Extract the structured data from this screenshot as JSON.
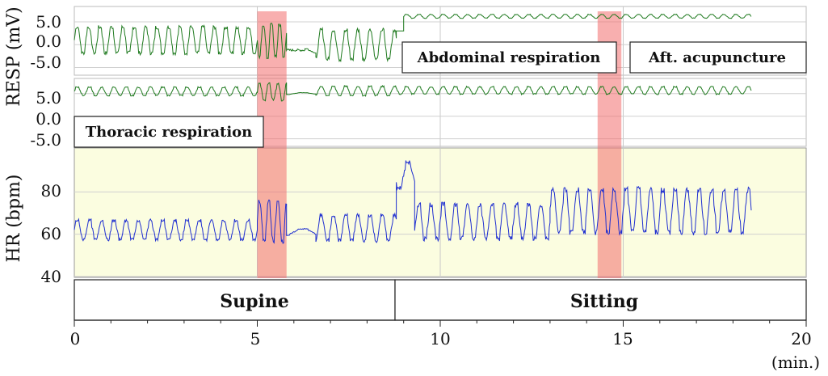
{
  "chart_data": [
    {
      "type": "line",
      "panel": "abdominal",
      "ylabel": "RESP (mV)",
      "yticks": [
        "5.0",
        "0.0",
        "-5.0"
      ],
      "ytick_values": [
        5,
        0,
        -5
      ],
      "ylim": [
        -6.5,
        8
      ],
      "xlim": [
        0,
        20
      ],
      "annotation": "Abdominal respiration",
      "annotation2": "Aft. acupuncture",
      "series": [
        {
          "color": "#1f7a1f",
          "segments": [
            {
              "from": 0.0,
              "to": 5.0,
              "base": 1.0,
              "amp": 2.8,
              "freq": 3.2
            },
            {
              "from": 5.0,
              "to": 5.8,
              "base": 0.8,
              "amp": 3.6,
              "freq": 4.5
            },
            {
              "from": 5.8,
              "to": 6.3,
              "base": -1.2,
              "amp": 0.5,
              "freq": 0.0
            },
            {
              "from": 6.3,
              "to": 6.6,
              "base": -1.5,
              "amp": 0.6,
              "freq": 1.0
            },
            {
              "from": 6.6,
              "to": 8.8,
              "base": 0.0,
              "amp": 3.2,
              "freq": 3.0
            },
            {
              "from": 8.8,
              "to": 9.0,
              "base": 3.0,
              "amp": 0.0,
              "freq": 0.0
            },
            {
              "from": 9.0,
              "to": 18.5,
              "base": 6.2,
              "amp": 0.4,
              "freq": 3.0
            }
          ]
        }
      ]
    },
    {
      "type": "line",
      "panel": "thoracic",
      "yticks": [
        "5.0",
        "0.0",
        "-5.0"
      ],
      "ytick_values": [
        5,
        0,
        -5
      ],
      "ylim": [
        -6.5,
        8
      ],
      "xlim": [
        0,
        20
      ],
      "annotation": "Thoracic respiration",
      "series": [
        {
          "color": "#1f7a1f",
          "segments": [
            {
              "from": 0.0,
              "to": 5.0,
              "base": 5.5,
              "amp": 0.9,
              "freq": 3.0
            },
            {
              "from": 5.0,
              "to": 5.8,
              "base": 5.4,
              "amp": 1.8,
              "freq": 4.0
            },
            {
              "from": 5.8,
              "to": 6.6,
              "base": 5.0,
              "amp": 0.2,
              "freq": 1.0
            },
            {
              "from": 6.6,
              "to": 8.8,
              "base": 5.6,
              "amp": 1.0,
              "freq": 3.0
            },
            {
              "from": 8.8,
              "to": 18.5,
              "base": 5.7,
              "amp": 0.8,
              "freq": 3.0
            }
          ]
        }
      ]
    },
    {
      "type": "line",
      "panel": "hr",
      "ylabel": "HR (bpm)",
      "yticks": [
        "80",
        "60",
        "40"
      ],
      "ytick_values": [
        80,
        60,
        40
      ],
      "ylim": [
        40,
        100
      ],
      "xlim": [
        0,
        20
      ],
      "xticks": [
        "0",
        "5",
        "10",
        "15",
        "20"
      ],
      "xtick_values": [
        0,
        5,
        10,
        15,
        20
      ],
      "xunit": "(min.)",
      "series": [
        {
          "color": "#1f2fd0",
          "segments": [
            {
              "from": 0.0,
              "to": 5.0,
              "base": 62,
              "amp": 4.5,
              "freq": 3.0
            },
            {
              "from": 5.0,
              "to": 5.8,
              "base": 66,
              "amp": 9.0,
              "freq": 4.0
            },
            {
              "from": 5.8,
              "to": 6.6,
              "base": 61,
              "amp": 1.5,
              "freq": 1.0
            },
            {
              "from": 6.6,
              "to": 8.8,
              "base": 63,
              "amp": 6.0,
              "freq": 3.0
            },
            {
              "from": 8.8,
              "to": 9.3,
              "base": 88,
              "amp": 6.0,
              "freq": 2.0
            },
            {
              "from": 9.3,
              "to": 13.0,
              "base": 66,
              "amp": 8.0,
              "freq": 3.0
            },
            {
              "from": 13.0,
              "to": 18.5,
              "base": 71,
              "amp": 10.0,
              "freq": 3.0
            }
          ]
        }
      ],
      "postures": [
        {
          "label": "Supine",
          "from": 0,
          "to": 8.8
        },
        {
          "label": "Sitting",
          "from": 8.8,
          "to": 20
        }
      ]
    }
  ],
  "highlights": [
    {
      "from": 5.0,
      "to": 5.8
    },
    {
      "from": 14.3,
      "to": 14.95
    }
  ],
  "colors": {
    "resp_line": "#1f7a1f",
    "hr_line": "#1f2fd0",
    "highlight": "#f26d6d",
    "hr_background": "#fbfde0"
  }
}
